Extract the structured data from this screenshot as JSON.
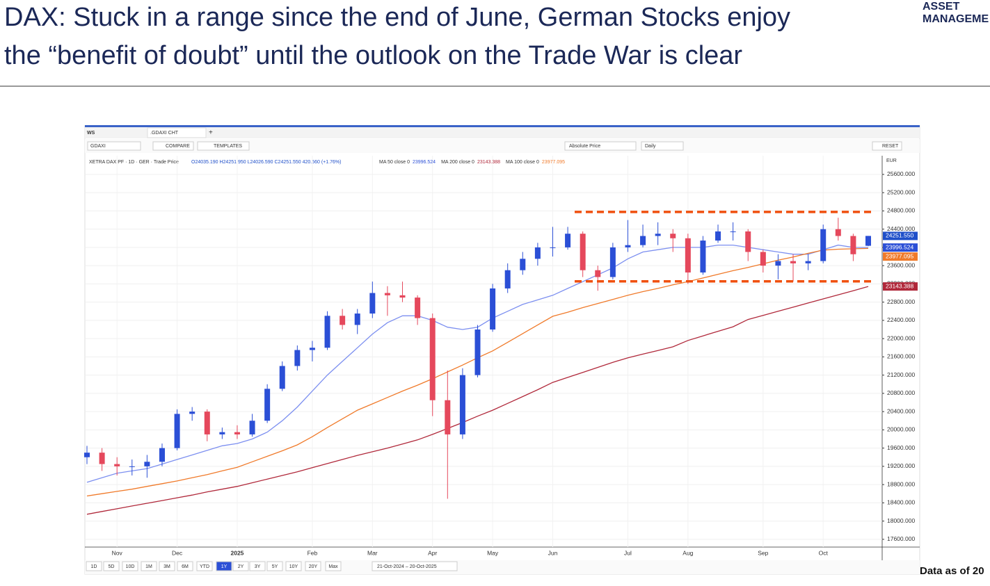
{
  "header": {
    "title_lines": [
      "DAX: Stuck in a range since the end of June, German Stocks enjoy",
      "the “benefit of doubt” until the outlook on the Trade War is clear"
    ],
    "logo": [
      "ASSET",
      "MANAGEME"
    ]
  },
  "footer_note": "Data as of 20",
  "window": {
    "tab_prefix": "WS",
    "tab": ".GDAXI CHT",
    "symbol": "GDAXI",
    "compare": "COMPARE",
    "templates": "TEMPLATES",
    "price_mode": "Absolute Price",
    "interval": "Daily",
    "reset": "RESET",
    "currency": "EUR",
    "periods": [
      "1D",
      "5D",
      "10D",
      "1M",
      "3M",
      "6M",
      "YTD",
      "1Y",
      "2Y",
      "3Y",
      "5Y",
      "10Y",
      "20Y",
      "Max"
    ],
    "active_period_index": 7,
    "date_range": "21-Oct-2024 – 20-Oct-2025"
  },
  "chart_data": {
    "type": "candlestick",
    "quote": {
      "instrument": "XETRA DAX PF · 1D · GER · Trade Price",
      "ohlc": "O24035.190 H24251.950 L24026.590 C24251.550 420.560 (+1.76%)"
    },
    "categories": [
      null,
      null,
      "Nov",
      null,
      null,
      null,
      "Dec",
      null,
      null,
      null,
      "2025",
      null,
      null,
      null,
      null,
      "Feb",
      null,
      null,
      null,
      "Mar",
      null,
      null,
      null,
      "Apr",
      null,
      null,
      null,
      "May",
      null,
      null,
      null,
      "Jun",
      null,
      null,
      null,
      null,
      "Jul",
      null,
      null,
      null,
      "Aug",
      null,
      null,
      null,
      null,
      "Sep",
      null,
      null,
      null,
      "Oct",
      null,
      null,
      null
    ],
    "open": [
      19400,
      19500,
      19250,
      19200,
      19200,
      19300,
      19600,
      20350,
      20400,
      19900,
      19950,
      19900,
      20200,
      20900,
      21400,
      21750,
      21800,
      22500,
      22300,
      22550,
      23000,
      22950,
      22900,
      22450,
      20650,
      19900,
      21200,
      22200,
      23100,
      23500,
      23750,
      24000,
      24000,
      24300,
      23500,
      23350,
      24000,
      24050,
      24250,
      24300,
      24200,
      23450,
      24150,
      24350,
      24350,
      23900,
      23600,
      23700,
      23650,
      23700,
      24400,
      24250,
      24035.19
    ],
    "high": [
      19650,
      19600,
      19400,
      19350,
      19450,
      19700,
      20450,
      20500,
      20450,
      20050,
      20100,
      20350,
      21000,
      21500,
      21850,
      21950,
      22600,
      22650,
      22650,
      23250,
      23150,
      23250,
      22950,
      22550,
      21300,
      21350,
      22300,
      23200,
      23650,
      23900,
      24100,
      24450,
      24450,
      24350,
      23600,
      24100,
      24600,
      24500,
      24550,
      24400,
      24300,
      24250,
      24500,
      24550,
      24400,
      23950,
      23850,
      23850,
      23850,
      24500,
      24650,
      24300,
      24251.95
    ],
    "low": [
      19250,
      19100,
      19000,
      19000,
      18950,
      19200,
      19550,
      20200,
      19750,
      19800,
      19800,
      19850,
      20150,
      20850,
      21300,
      21500,
      21750,
      22200,
      22100,
      22450,
      22500,
      22800,
      22300,
      20300,
      18490,
      19800,
      21150,
      22150,
      23000,
      23400,
      23600,
      23800,
      23950,
      23350,
      23050,
      23300,
      23900,
      24000,
      24050,
      23900,
      23200,
      23400,
      24100,
      24150,
      23700,
      23450,
      23300,
      23250,
      23500,
      23650,
      24150,
      23700,
      24026.59
    ],
    "close": [
      19500,
      19250,
      19200,
      19200,
      19300,
      19600,
      20350,
      20400,
      19900,
      19950,
      19900,
      20200,
      20900,
      21400,
      21750,
      21800,
      22500,
      22300,
      22550,
      23000,
      22950,
      22900,
      22450,
      20650,
      19900,
      21200,
      22200,
      23100,
      23500,
      23750,
      24000,
      24000,
      24300,
      23500,
      23350,
      24000,
      24050,
      24250,
      24300,
      24200,
      23450,
      24150,
      24350,
      24350,
      23900,
      23600,
      23700,
      23650,
      23700,
      24400,
      24250,
      23850,
      24251.55
    ],
    "last_close_label": "24251.550",
    "up_color": "#2b4fd6",
    "down_color": "#e5485c",
    "last_color": "#1f4fc9",
    "series": [
      {
        "name": "MA 50 close 0",
        "color": "#7c8ff0",
        "last_label": "23996.524",
        "values": [
          18850,
          18950,
          19050,
          19100,
          19150,
          19250,
          19350,
          19450,
          19550,
          19650,
          19700,
          19800,
          19950,
          20200,
          20500,
          20850,
          21200,
          21500,
          21800,
          22100,
          22350,
          22500,
          22500,
          22400,
          22250,
          22200,
          22250,
          22450,
          22600,
          22750,
          22850,
          22950,
          23100,
          23250,
          23400,
          23550,
          23750,
          23900,
          23950,
          24000,
          24000,
          24000,
          24050,
          24050,
          24000,
          23950,
          23900,
          23850,
          23850,
          23950,
          24050,
          24000,
          23996.524
        ]
      },
      {
        "name": "MA 200 close 0",
        "color": "#b0283a",
        "last_label": "23143.388",
        "values": [
          18150,
          18210,
          18270,
          18330,
          18390,
          18450,
          18510,
          18570,
          18640,
          18700,
          18760,
          18840,
          18920,
          19000,
          19080,
          19170,
          19260,
          19350,
          19440,
          19520,
          19600,
          19690,
          19780,
          19900,
          20030,
          20160,
          20300,
          20430,
          20580,
          20730,
          20880,
          21040,
          21150,
          21260,
          21370,
          21480,
          21580,
          21660,
          21740,
          21820,
          21960,
          22060,
          22160,
          22260,
          22420,
          22510,
          22600,
          22690,
          22780,
          22870,
          22960,
          23050,
          23143.388
        ]
      },
      {
        "name": "MA 100 close 0",
        "color": "#f07a2a",
        "last_label": "23977.095",
        "values": [
          18550,
          18600,
          18650,
          18700,
          18760,
          18820,
          18880,
          18950,
          19020,
          19100,
          19180,
          19300,
          19420,
          19540,
          19670,
          19850,
          20050,
          20240,
          20430,
          20570,
          20710,
          20850,
          20980,
          21120,
          21270,
          21420,
          21580,
          21730,
          21920,
          22110,
          22300,
          22490,
          22580,
          22680,
          22770,
          22860,
          22950,
          23030,
          23100,
          23180,
          23250,
          23330,
          23410,
          23490,
          23560,
          23640,
          23720,
          23790,
          23870,
          23940,
          23960,
          23970,
          23977.095
        ]
      }
    ],
    "range_lines": [
      24777,
      23255
    ],
    "range_color": "#f0500f",
    "ylim": [
      17430,
      26010
    ],
    "yticks": [
      {
        "value": 17600,
        "label": "17600.000"
      },
      {
        "value": 18000,
        "label": "18000.000"
      },
      {
        "value": 18400,
        "label": "18400.000"
      },
      {
        "value": 18800,
        "label": "18800.000"
      },
      {
        "value": 19200,
        "label": "19200.000"
      },
      {
        "value": 19600,
        "label": "19600.000"
      },
      {
        "value": 20000,
        "label": "20000.000"
      },
      {
        "value": 20400,
        "label": "20400.000"
      },
      {
        "value": 20800,
        "label": "20800.000"
      },
      {
        "value": 21200,
        "label": "21200.000"
      },
      {
        "value": 21600,
        "label": "21600.000"
      },
      {
        "value": 22000,
        "label": "22000.000"
      },
      {
        "value": 22400,
        "label": "22400.000"
      },
      {
        "value": 22800,
        "label": "22800.000"
      },
      {
        "value": 23200,
        "label": "23200.000"
      },
      {
        "value": 23600,
        "label": "23600.000"
      },
      {
        "value": 24000,
        "label": "24000.000"
      },
      {
        "value": 24400,
        "label": "24400.000"
      },
      {
        "value": 24800,
        "label": "24800.000"
      },
      {
        "value": 25200,
        "label": "25200.000"
      },
      {
        "value": 25600,
        "label": "25600.000"
      }
    ],
    "grid": true
  }
}
